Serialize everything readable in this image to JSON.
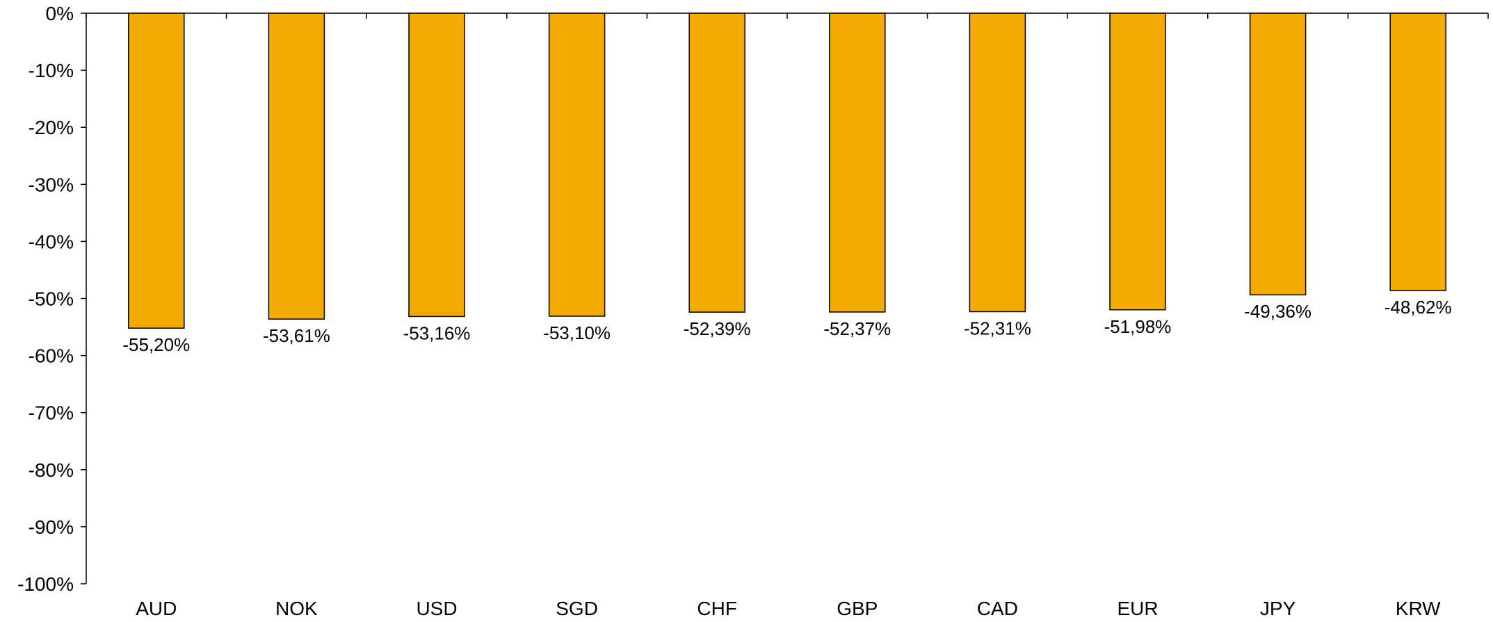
{
  "chart_data": {
    "type": "bar",
    "categories": [
      "AUD",
      "NOK",
      "USD",
      "SGD",
      "CHF",
      "GBP",
      "CAD",
      "EUR",
      "JPY",
      "KRW"
    ],
    "series": [
      {
        "values": [
          -55.2,
          -53.61,
          -53.16,
          -53.1,
          -52.39,
          -52.37,
          -52.31,
          -51.98,
          -49.36,
          -48.62
        ]
      }
    ],
    "data_labels": [
      "-55,20%",
      "-53,61%",
      "-53,16%",
      "-53,10%",
      "-52,39%",
      "-52,37%",
      "-52,31%",
      "-51,98%",
      "-49,36%",
      "-48,62%"
    ],
    "y_ticks": [
      0,
      -10,
      -20,
      -30,
      -40,
      -50,
      -60,
      -70,
      -80,
      -90,
      -100
    ],
    "y_tick_labels": [
      "0%",
      "-10%",
      "-20%",
      "-30%",
      "-40%",
      "-50%",
      "-60%",
      "-70%",
      "-80%",
      "-90%",
      "-100%"
    ],
    "ylim": [
      -100,
      0
    ],
    "grid": false,
    "legend": "none",
    "title": "",
    "xlabel": "",
    "ylabel": "",
    "colors": {
      "bar": "#F2A900",
      "bar_outline": "#000000",
      "axis": "#000000"
    }
  }
}
